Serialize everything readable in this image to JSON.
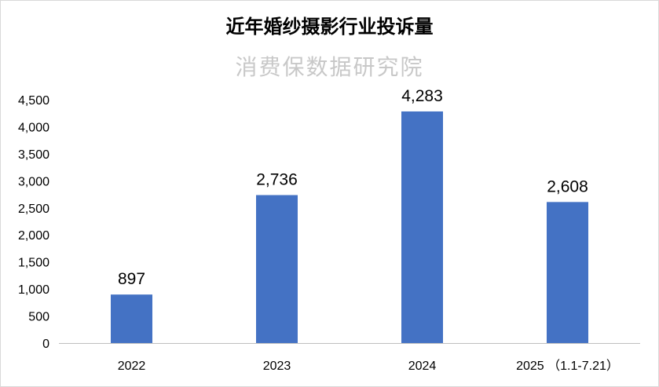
{
  "watermark": "消费保数据研究院",
  "chart_data": {
    "type": "bar",
    "title": "近年婚纱摄影行业投诉量",
    "categories": [
      "2022",
      "2023",
      "2024",
      "2025 （1.1-7.21）"
    ],
    "values": [
      897,
      2736,
      4283,
      2608
    ],
    "data_labels": [
      "897",
      "2,736",
      "4,283",
      "2,608"
    ],
    "yticks": [
      "0",
      "500",
      "1,000",
      "1,500",
      "2,000",
      "2,500",
      "3,000",
      "3,500",
      "4,000",
      "4,500"
    ],
    "ylim": [
      0,
      4500
    ],
    "grid": false,
    "legend": "none",
    "bar_color": "#4472C4"
  }
}
